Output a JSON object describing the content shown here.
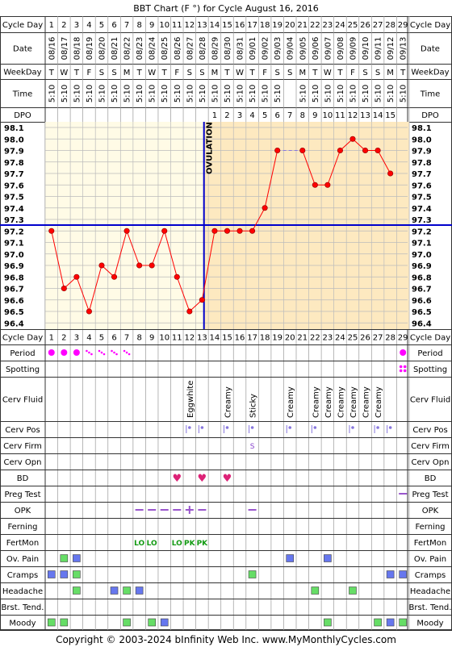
{
  "title": "BBT Chart (F °) for Cycle August 16, 2016",
  "footer": "Copyright © 2003-2024 bInfinity Web Inc.    www.MyMonthlyCycles.com",
  "labels": {
    "cycle_day": "Cycle Day",
    "date": "Date",
    "weekday": "WeekDay",
    "time": "Time",
    "dpo": "DPO",
    "period": "Period",
    "spotting": "Spotting",
    "cerv_fluid": "Cerv Fluid",
    "cerv_pos": "Cerv Pos",
    "cerv_firm": "Cerv Firm",
    "cerv_opn": "Cerv Opn",
    "bd": "BD",
    "preg_test": "Preg Test",
    "opk": "OPK",
    "ferning": "Ferning",
    "fertmon": "FertMon",
    "ov_pain": "Ov. Pain",
    "cramps": "Cramps",
    "headache": "Headache",
    "brst_tend": "Brst. Tend.",
    "moody": "Moody"
  },
  "ovulation_label": "OVULATION",
  "colors": {
    "line": "#ff0000",
    "coverline": "#0000cc",
    "ovulation_line": "#0000cc",
    "pre_ov_bg": "#fffbe6",
    "post_ov_bg": "#fde9c0",
    "period": "#ff00ff",
    "symptom_green": "#66dd66",
    "symptom_blue": "#6677ee",
    "bd_heart": "#dd2277",
    "opk_purple": "#9955cc",
    "fertmon_green": "#119911"
  },
  "chart_data": {
    "type": "line",
    "x": [
      1,
      2,
      3,
      4,
      5,
      6,
      7,
      8,
      9,
      10,
      11,
      12,
      13,
      14,
      15,
      16,
      17,
      18,
      19,
      20,
      21,
      22,
      23,
      24,
      25,
      26,
      27,
      28
    ],
    "dates": [
      "08/16",
      "08/17",
      "08/18",
      "08/19",
      "08/20",
      "08/21",
      "08/22",
      "08/23",
      "08/24",
      "08/25",
      "08/26",
      "08/27",
      "08/28",
      "08/29",
      "08/30",
      "08/31",
      "09/01",
      "09/02",
      "09/03",
      "09/04",
      "09/05",
      "09/06",
      "09/07",
      "09/08",
      "09/09",
      "09/10",
      "09/11",
      "09/12",
      "09/13"
    ],
    "weekdays": [
      "T",
      "W",
      "T",
      "F",
      "S",
      "S",
      "M",
      "T",
      "W",
      "T",
      "F",
      "S",
      "S",
      "M",
      "T",
      "W",
      "T",
      "F",
      "S",
      "S",
      "M",
      "T",
      "W",
      "T",
      "F",
      "S",
      "S",
      "M",
      "T"
    ],
    "times": [
      "5:10",
      "5:10",
      "5:10",
      "5:10",
      "5:10",
      "5:10",
      "5:10",
      "5:10",
      "5:10",
      "5:10",
      "5:10",
      "5:10",
      "5:10",
      "5:10",
      "5:10",
      "5:10",
      "5:10",
      "5:10",
      "5:10",
      "",
      "5:10",
      "5:10",
      "5:10",
      "5:10",
      "5:10",
      "5:10",
      "5:10",
      "5:10",
      "5:10"
    ],
    "dpo": [
      "",
      "",
      "",
      "",
      "",
      "",
      "",
      "",
      "",
      "",
      "",
      "",
      "",
      "1",
      "2",
      "3",
      "4",
      "5",
      "6",
      "7",
      "8",
      "9",
      "10",
      "11",
      "12",
      "13",
      "14",
      "15",
      ""
    ],
    "y_ticks": [
      "98.1",
      "98.0",
      "97.9",
      "97.8",
      "97.7",
      "97.6",
      "97.5",
      "97.4",
      "97.3",
      "97.2",
      "97.1",
      "97.0",
      "96.9",
      "96.8",
      "96.7",
      "96.6",
      "96.5",
      "96.4"
    ],
    "ylim": [
      96.4,
      98.1
    ],
    "series": [
      {
        "values": [
          97.2,
          96.7,
          96.8,
          96.5,
          96.9,
          96.8,
          97.2,
          96.9,
          96.9,
          97.2,
          96.8,
          96.5,
          96.6,
          97.2,
          97.2,
          97.2,
          97.2,
          97.4,
          97.9,
          null,
          97.9,
          97.6,
          97.6,
          97.9,
          98.0,
          97.9,
          97.9,
          97.7
        ]
      }
    ],
    "coverline": 97.3,
    "ovulation_day": 13,
    "grid": true
  },
  "observations": {
    "period": {
      "1": "dot",
      "2": "dot",
      "3": "dot",
      "4": "light",
      "5": "light",
      "6": "light",
      "7": "light",
      "29": "dot"
    },
    "spotting": {
      "29": "dots"
    },
    "cerv_fluid": {
      "12": "Eggwhite",
      "15": "Creamy",
      "17": "Sticky",
      "20": "Creamy",
      "22": "Creamy",
      "23": "Creamy",
      "24": "Creamy",
      "25": "Creamy",
      "26": "Creamy",
      "27": "Creamy"
    },
    "cerv_pos": {
      "12": "|•",
      "13": "|•",
      "15": "|•",
      "17": "|•",
      "20": "|•",
      "22": "|•",
      "25": "|•",
      "27": "|•",
      "28": "|•"
    },
    "cerv_firm": {
      "17": "S"
    },
    "bd": {
      "11": "♥",
      "13": "♥",
      "15": "♥"
    },
    "preg_test": {
      "29": "—"
    },
    "opk": {
      "8": "—",
      "9": "—",
      "10": "—",
      "11": "—",
      "12": "+",
      "13": "—",
      "17": "—"
    },
    "fertmon": {
      "8": "LO",
      "9": "LO",
      "11": "LO",
      "12": "PK",
      "13": "PK"
    },
    "ov_pain": {
      "2": "g",
      "3": "b",
      "20": "b",
      "23": "b"
    },
    "cramps": {
      "1": "b",
      "2": "b",
      "3": "g",
      "17": "g",
      "28": "b",
      "29": "b"
    },
    "headache": {
      "3": "g",
      "6": "b",
      "7": "g",
      "8": "b",
      "22": "g",
      "25": "g"
    },
    "moody": {
      "1": "g",
      "2": "g",
      "7": "g",
      "9": "g",
      "10": "b",
      "23": "g",
      "27": "g",
      "28": "b",
      "29": "g"
    }
  }
}
